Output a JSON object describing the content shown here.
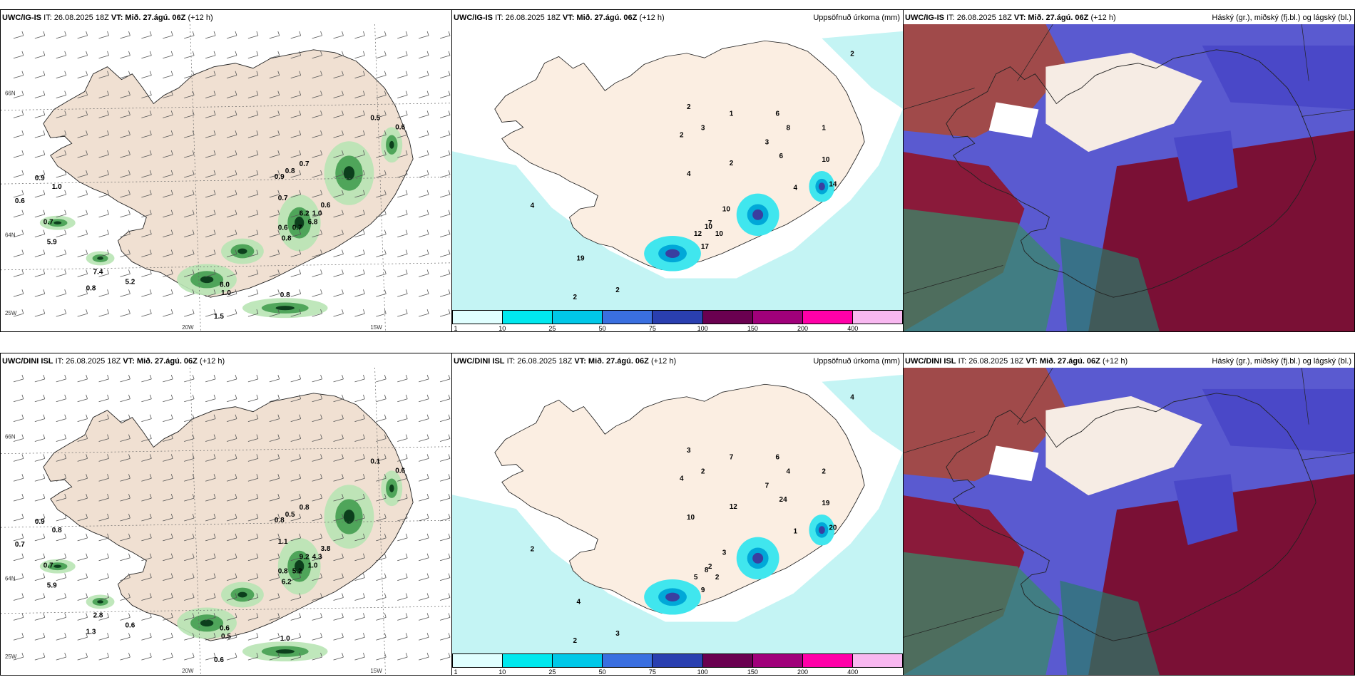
{
  "rows": [
    {
      "model": "UWC/IG-IS",
      "it": "IT: 26.08.2025 18Z",
      "vt": "VT: Mið. 27.ágú. 06Z",
      "lead": "(+12 h)"
    },
    {
      "model": "UWC/DINI ISL",
      "it": "IT: 26.08.2025 18Z",
      "vt": "VT: Mið. 27.ágú. 06Z",
      "lead": "(+12 h)"
    }
  ],
  "precip_title": "Uppsöfnuð úrkoma (mm)",
  "cloud_title": "Háský (gr.), miðský (fj.bl.) og lágský (bl.)",
  "colorbar": {
    "ticks": [
      "1",
      "10",
      "25",
      "50",
      "75",
      "100",
      "150",
      "200",
      "400"
    ],
    "colors": [
      "#e0ffff",
      "#00e8ee",
      "#00c8e8",
      "#3a6fe0",
      "#2a3fb0",
      "#6a0050",
      "#a0007a",
      "#ff00a8",
      "#f8b8f0"
    ]
  },
  "grid_labels": {
    "lat66": "66N",
    "lat64": "64N",
    "lon25": "25W",
    "lon20": "20W",
    "lon15": "15W"
  },
  "wind_values_top": [
    "0.5",
    "0.6",
    "0.9",
    "1.0",
    "0.6",
    "0.7",
    "0.8",
    "0.9",
    "0.7",
    "1.0",
    "0.6",
    "0.7",
    "0.8",
    "5.9",
    "7.4",
    "5.2",
    "6.2",
    "6.8",
    "8.0",
    "1.0",
    "0.8",
    "0.8",
    "0.7",
    "0.6",
    "1.5"
  ],
  "wind_values_bottom": [
    "0.1",
    "0.6",
    "0.9",
    "0.8",
    "0.7",
    "0.8",
    "0.5",
    "0.8",
    "1.1",
    "4.3",
    "3.8",
    "5.2",
    "6.2",
    "5.9",
    "2.8",
    "0.6",
    "9.2",
    "1.0",
    "0.6",
    "0.5",
    "1.0",
    "1.3",
    "0.7",
    "0.8",
    "0.6"
  ],
  "precip_values_top": [
    "2",
    "3",
    "2",
    "1",
    "3",
    "2",
    "6",
    "10",
    "14",
    "4",
    "19",
    "12",
    "17",
    "10",
    "7",
    "10",
    "10",
    "6",
    "8",
    "4",
    "2",
    "2",
    "4",
    "1",
    "2"
  ],
  "precip_values_bottom": [
    "3",
    "2",
    "4",
    "7",
    "7",
    "12",
    "24",
    "19",
    "20",
    "10",
    "4",
    "5",
    "9",
    "3",
    "2",
    "2",
    "8",
    "6",
    "4",
    "2",
    "3",
    "2",
    "1",
    "2",
    "4"
  ]
}
